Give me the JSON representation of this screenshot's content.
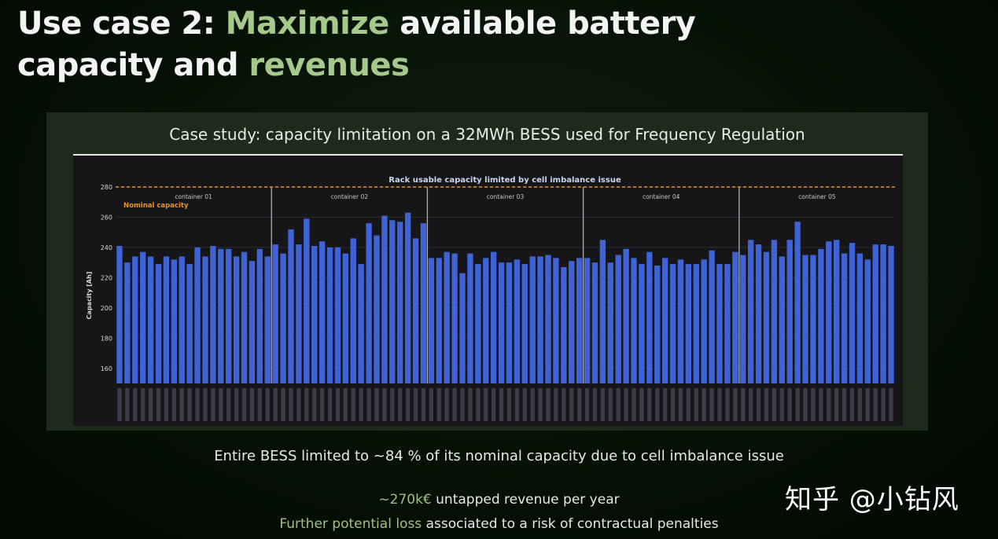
{
  "slide": {
    "title_part1": "Use case 2: ",
    "title_accent1": "Maximize",
    "title_part2": " available battery",
    "title_part3": "capacity and ",
    "title_accent2": "revenues",
    "panel_title": "Case study: capacity limitation on a 32MWh BESS used for Frequency Regulation",
    "note1": "Entire BESS limited to ~84 % of its nominal capacity due to cell imbalance issue",
    "note2_highlight": "~270k€",
    "note2_rest": " untapped revenue per year",
    "note3_highlight": "Further potential loss",
    "note3_rest": " associated to a risk of contractual penalties",
    "watermark": "知乎 @小钻风"
  },
  "colors": {
    "accent_green": "#a5c98a",
    "bar_blue": "#3f63d6",
    "nominal_line": "#e8902a",
    "divider": "#a9b0c4"
  },
  "chart_data": {
    "type": "bar",
    "title": "Rack usable capacity limited by cell imbalance issue",
    "ylabel": "Capacity [Ah]",
    "ylim": [
      150,
      280
    ],
    "yticks": [
      160,
      180,
      200,
      220,
      240,
      260,
      280
    ],
    "nominal_capacity": {
      "label": "Nominal capacity",
      "value": 280
    },
    "containers": [
      "container 01",
      "container 02",
      "container 03",
      "container 04",
      "container 05"
    ],
    "series": [
      {
        "values": [
          241,
          230,
          234,
          237,
          234,
          229,
          234,
          232,
          234,
          229,
          240,
          234,
          241,
          239,
          239,
          234,
          237,
          231,
          239,
          234,
          242,
          236,
          252,
          242,
          259,
          241,
          244,
          240,
          240,
          236,
          246,
          229,
          256,
          248,
          261,
          258,
          257,
          263,
          246,
          256,
          233,
          233,
          237,
          236,
          223,
          236,
          229,
          233,
          237,
          230,
          230,
          232,
          229,
          234,
          234,
          235,
          233,
          227,
          231,
          233,
          233,
          230,
          245,
          230,
          235,
          239,
          233,
          229,
          237,
          228,
          233,
          229,
          232,
          229,
          229,
          232,
          238,
          229,
          229,
          237,
          235,
          245,
          242,
          237,
          245,
          234,
          245,
          257,
          235,
          235,
          239,
          244,
          245,
          236,
          243,
          236,
          232,
          242,
          242,
          241
        ]
      }
    ]
  }
}
